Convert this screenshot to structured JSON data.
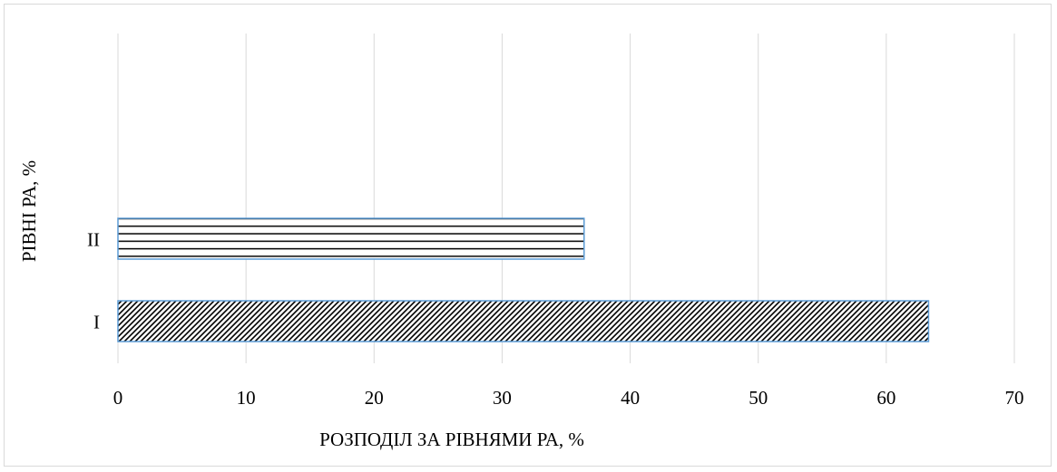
{
  "chart_data": {
    "type": "bar",
    "orientation": "horizontal",
    "categories": [
      "I",
      "II"
    ],
    "values": [
      63.3,
      36.4
    ],
    "xlabel": "РОЗПОДІЛ ЗА РІВНЯМИ РА, %",
    "ylabel": "РІВНІ РА, %",
    "xlim": [
      0,
      70
    ],
    "xticks": [
      0,
      10,
      20,
      30,
      40,
      50,
      60,
      70
    ],
    "grid": true,
    "legend": "none",
    "colors": {
      "bar_border": "#5b9bd5",
      "bar_fill": "#ffffff",
      "pattern_ink": "#000000",
      "grid": "#d9d9d9",
      "frame": "#d9d9d9"
    },
    "patterns": [
      "dotted-diagonal",
      "horizontal-lines"
    ]
  }
}
